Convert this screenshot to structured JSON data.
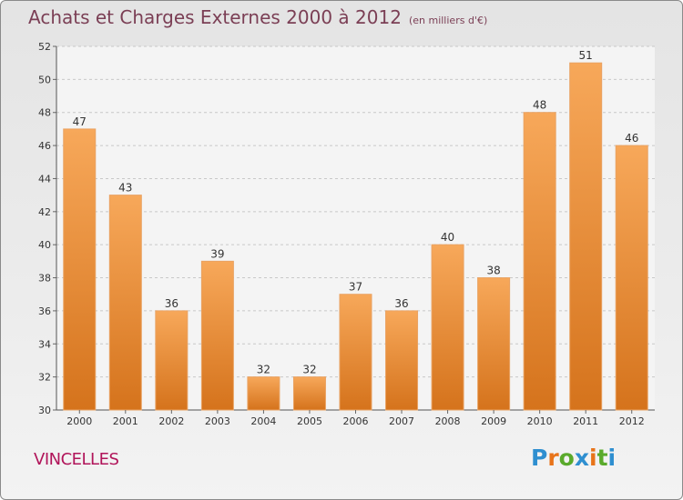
{
  "header": {
    "title": "Achats et Charges Externes 2000 à 2012",
    "subtitle": "(en milliers d'€)"
  },
  "footer": {
    "town": "VINCELLES",
    "logo_text": "Proxiti"
  },
  "colors": {
    "bar_top": "#f7a85a",
    "bar_bottom": "#d5731c",
    "title": "#7b3f55",
    "town": "#b1155a"
  },
  "chart_data": {
    "type": "bar",
    "title": "Achats et Charges Externes 2000 à 2012",
    "subtitle": "(en milliers d'€)",
    "categories": [
      "2000",
      "2001",
      "2002",
      "2003",
      "2004",
      "2005",
      "2006",
      "2007",
      "2008",
      "2009",
      "2010",
      "2011",
      "2012"
    ],
    "values": [
      47,
      43,
      36,
      39,
      32,
      32,
      37,
      36,
      40,
      38,
      48,
      51,
      46
    ],
    "ylim": [
      30,
      52
    ],
    "yticks": [
      30,
      32,
      34,
      36,
      38,
      40,
      42,
      44,
      46,
      48,
      50,
      52
    ],
    "grid": true,
    "legend": "none"
  }
}
